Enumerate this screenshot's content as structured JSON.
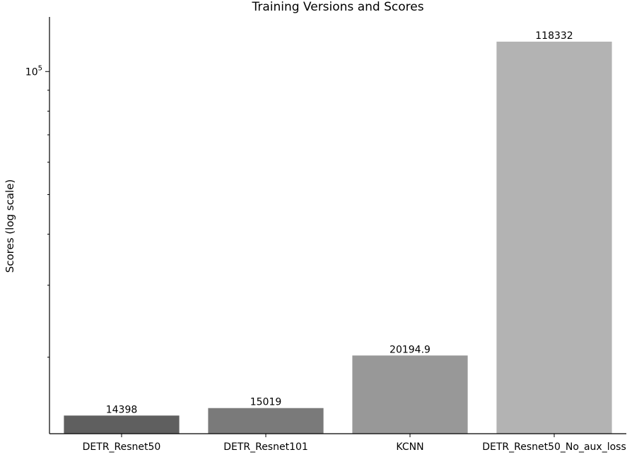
{
  "chart_data": {
    "type": "bar",
    "title": "Training Versions and Scores",
    "xlabel": "",
    "ylabel": "Scores (log scale)",
    "yscale": "log",
    "ylim": [
      13000,
      136000
    ],
    "yticks": [
      {
        "value": 100000,
        "base": "10",
        "exponent": "5"
      }
    ],
    "grid": false,
    "categories": [
      "DETR_Resnet50",
      "DETR_Resnet101",
      "KCNN",
      "DETR_Resnet50_No_aux_loss"
    ],
    "values": [
      14398,
      15019,
      20194.9,
      118332
    ],
    "data_labels": [
      "14398",
      "15019",
      "20194.9",
      "118332"
    ],
    "colors": [
      "#5f5f5f",
      "#7a7a7a",
      "#989898",
      "#b3b3b3"
    ]
  }
}
